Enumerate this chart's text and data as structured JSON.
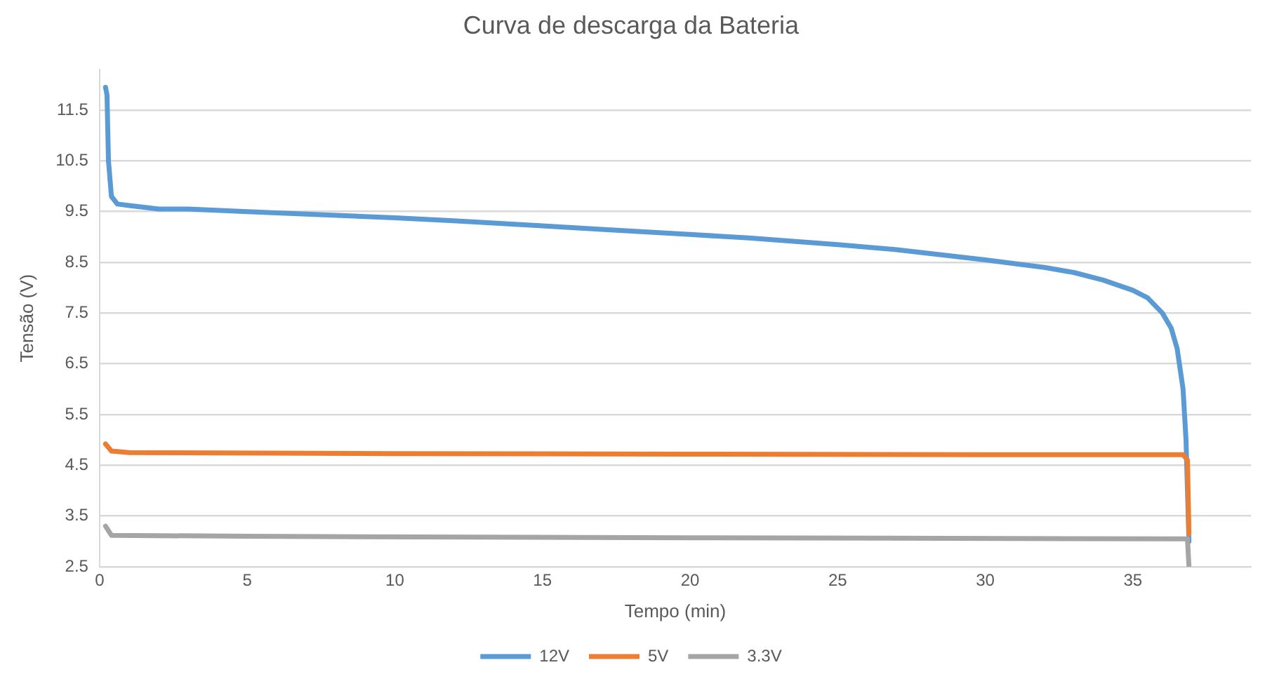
{
  "chart_data": {
    "type": "line",
    "title": "Curva de descarga da Bateria",
    "xlabel": "Tempo (min)",
    "ylabel": "Tensão (V)",
    "xlim": [
      0,
      39
    ],
    "xticks": [
      0,
      5,
      10,
      15,
      20,
      25,
      30,
      35
    ],
    "ylim": [
      2.5,
      12.3
    ],
    "yticks": [
      2.5,
      3.5,
      4.5,
      5.5,
      6.5,
      7.5,
      8.5,
      9.5,
      10.5,
      11.5
    ],
    "grid": "y",
    "legend": "bottom",
    "marker": "none",
    "line_style": "solid",
    "series": [
      {
        "name": "12V",
        "color": "#5b9bd5",
        "x": [
          0.2,
          0.25,
          0.3,
          0.4,
          0.6,
          1,
          2,
          3,
          5,
          7,
          10,
          12,
          15,
          17,
          20,
          22,
          25,
          27,
          30,
          32,
          33,
          34,
          35,
          35.5,
          36,
          36.3,
          36.5,
          36.7,
          36.8,
          36.85,
          36.9
        ],
        "values": [
          11.95,
          11.8,
          10.5,
          9.8,
          9.65,
          9.62,
          9.55,
          9.55,
          9.5,
          9.45,
          9.38,
          9.32,
          9.22,
          9.15,
          9.05,
          8.98,
          8.85,
          8.75,
          8.55,
          8.4,
          8.3,
          8.15,
          7.95,
          7.8,
          7.5,
          7.2,
          6.8,
          6.0,
          5.0,
          4.0,
          3.0
        ]
      },
      {
        "name": "5V",
        "color": "#ed7d31",
        "x": [
          0.2,
          0.4,
          1,
          10,
          20,
          30,
          36.7,
          36.85,
          36.9
        ],
        "values": [
          4.92,
          4.78,
          4.75,
          4.73,
          4.72,
          4.71,
          4.71,
          4.6,
          3.15
        ]
      },
      {
        "name": "3.3V",
        "color": "#a5a5a5",
        "x": [
          0.2,
          0.4,
          5,
          20,
          36.8,
          36.85,
          36.9
        ],
        "values": [
          3.3,
          3.12,
          3.1,
          3.07,
          3.05,
          3.05,
          2.5
        ]
      }
    ]
  }
}
